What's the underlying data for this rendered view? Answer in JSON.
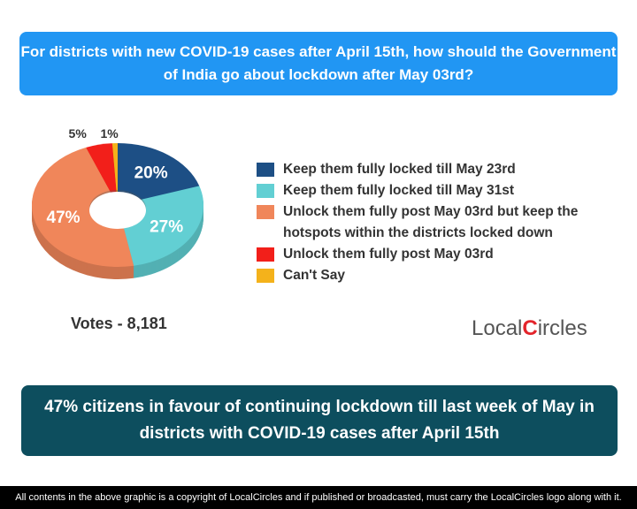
{
  "title": "For districts with new COVID-19 cases after April 15th, how should the Government of India go about lockdown after May 03rd?",
  "chart_data": {
    "type": "pie",
    "variant": "3d-donut",
    "categories": [
      "Keep them fully locked till May 23rd",
      "Keep them fully locked till May 31st",
      "Unlock them fully post May 03rd but keep the hotspots within the districts locked down",
      "Unlock them fully post May 03rd",
      "Can't Say"
    ],
    "values": [
      20,
      27,
      47,
      5,
      1
    ],
    "labels": [
      "20%",
      "27%",
      "47%",
      "5%",
      "1%"
    ],
    "colors": [
      "#1d4f85",
      "#62cfd3",
      "#f0865a",
      "#f21f1a",
      "#f4b21b"
    ],
    "legend_position": "right"
  },
  "votes": "Votes - 8,181",
  "logo": {
    "left": "Local",
    "c": "C",
    "right": "ircles"
  },
  "banner": "47% citizens in favour of continuing lockdown till last week of May in districts with COVID-19 cases after April 15th",
  "footer": "All contents in the above graphic is a copyright of LocalCircles and if published or broadcasted, must carry the LocalCircles logo along with it."
}
